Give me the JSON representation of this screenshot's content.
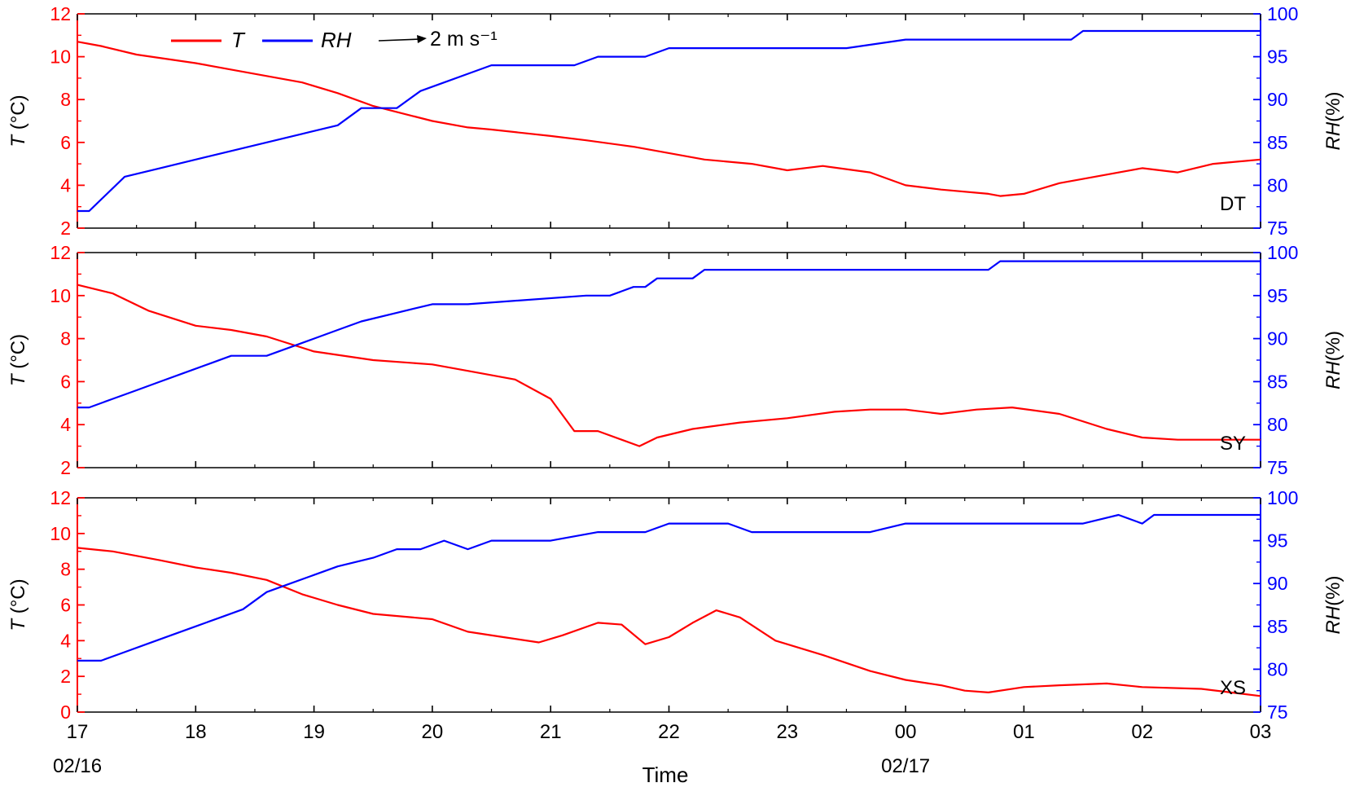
{
  "colors": {
    "temperature": "#ff0000",
    "humidity": "#0000ff",
    "wind": "#000000",
    "axes": "#000000"
  },
  "legend": {
    "t_label": "T",
    "rh_label": "RH",
    "wind_label": "2 m s⁻¹",
    "placement": "top-left"
  },
  "xaxis": {
    "title": "Time",
    "tick_labels": [
      "17",
      "18",
      "19",
      "20",
      "21",
      "22",
      "23",
      "00",
      "01",
      "02",
      "03"
    ],
    "date_labels": [
      {
        "label": "02/16",
        "at": "17"
      },
      {
        "label": "02/17",
        "at": "00"
      }
    ]
  },
  "yaxis_left": {
    "label_var": "T",
    "label_unit": " (°C)"
  },
  "yaxis_right": {
    "label_var": "RH",
    "label_unit": "(%)"
  },
  "chart_data": [
    {
      "type": "line",
      "station": "DT",
      "x_range": [
        "02/16 17:00",
        "02/17 03:00"
      ],
      "ylim_left": [
        2,
        12
      ],
      "yticks_left": [
        2,
        4,
        6,
        8,
        10,
        12
      ],
      "ylim_right": [
        75,
        100
      ],
      "yticks_right": [
        75,
        80,
        85,
        90,
        95,
        100
      ],
      "series": [
        {
          "name": "T",
          "axis": "left",
          "x": [
            17,
            17.2,
            17.5,
            18,
            18.3,
            18.6,
            18.9,
            19.2,
            19.5,
            20,
            20.3,
            20.5,
            21,
            21.3,
            21.7,
            22,
            22.3,
            22.7,
            23,
            23.3,
            23.7,
            24,
            24.3,
            24.7,
            24.8,
            25,
            25.3,
            25.6,
            26,
            26.3,
            26.6,
            27
          ],
          "y": [
            10.7,
            10.5,
            10.1,
            9.7,
            9.4,
            9.1,
            8.8,
            8.3,
            7.7,
            7.0,
            6.7,
            6.6,
            6.3,
            6.1,
            5.8,
            5.5,
            5.2,
            5.0,
            4.7,
            4.9,
            4.6,
            4.0,
            3.8,
            3.6,
            3.5,
            3.6,
            4.1,
            4.4,
            4.8,
            4.6,
            5.0,
            5.2
          ]
        },
        {
          "name": "RH",
          "axis": "right",
          "x": [
            17,
            17.1,
            17.4,
            17.7,
            18,
            18.3,
            18.6,
            18.9,
            19.2,
            19.4,
            19.7,
            19.9,
            20.1,
            20.3,
            20.5,
            21.2,
            21.4,
            21.8,
            22,
            22.7,
            23.5,
            24,
            24.5,
            25,
            25.4,
            25.5,
            27
          ],
          "y": [
            77,
            77,
            81,
            82,
            83,
            84,
            85,
            86,
            87,
            89,
            89,
            91,
            92,
            93,
            94,
            94,
            95,
            95,
            96,
            96,
            96,
            97,
            97,
            97,
            97,
            98,
            98
          ]
        }
      ]
    },
    {
      "type": "line",
      "station": "SY",
      "x_range": [
        "02/16 17:00",
        "02/17 03:00"
      ],
      "ylim_left": [
        2,
        12
      ],
      "yticks_left": [
        2,
        4,
        6,
        8,
        10,
        12
      ],
      "ylim_right": [
        75,
        100
      ],
      "yticks_right": [
        75,
        80,
        85,
        90,
        95,
        100
      ],
      "series": [
        {
          "name": "T",
          "axis": "left",
          "x": [
            17,
            17.3,
            17.6,
            18,
            18.3,
            18.6,
            19,
            19.5,
            20,
            20.3,
            20.7,
            21,
            21.2,
            21.4,
            21.6,
            21.75,
            21.9,
            22.2,
            22.6,
            23,
            23.4,
            23.7,
            24,
            24.3,
            24.6,
            24.9,
            25.3,
            25.7,
            26,
            26.3,
            26.6,
            27
          ],
          "y": [
            10.5,
            10.1,
            9.3,
            8.6,
            8.4,
            8.1,
            7.4,
            7.0,
            6.8,
            6.5,
            6.1,
            5.2,
            3.7,
            3.7,
            3.3,
            3.0,
            3.4,
            3.8,
            4.1,
            4.3,
            4.6,
            4.7,
            4.7,
            4.5,
            4.7,
            4.8,
            4.5,
            3.8,
            3.4,
            3.3,
            3.3,
            3.3
          ]
        },
        {
          "name": "RH",
          "axis": "right",
          "x": [
            17,
            17.1,
            17.3,
            17.5,
            17.7,
            17.9,
            18.1,
            18.3,
            18.6,
            18.8,
            19,
            19.2,
            19.4,
            19.7,
            20,
            20.3,
            21.3,
            21.5,
            21.7,
            21.8,
            21.9,
            22.2,
            22.3,
            24,
            24.7,
            24.8,
            27
          ],
          "y": [
            82,
            82,
            83,
            84,
            85,
            86,
            87,
            88,
            88,
            89,
            90,
            91,
            92,
            93,
            94,
            94,
            95,
            95,
            96,
            96,
            97,
            97,
            98,
            98,
            98,
            99,
            99
          ]
        }
      ]
    },
    {
      "type": "line",
      "station": "XS",
      "x_range": [
        "02/16 17:00",
        "02/17 03:00"
      ],
      "ylim_left": [
        0,
        12
      ],
      "yticks_left": [
        0,
        2,
        4,
        6,
        8,
        10,
        12
      ],
      "ylim_right": [
        75,
        100
      ],
      "yticks_right": [
        75,
        80,
        85,
        90,
        95,
        100
      ],
      "series": [
        {
          "name": "T",
          "axis": "left",
          "x": [
            17,
            17.3,
            17.7,
            18,
            18.3,
            18.6,
            18.9,
            19.2,
            19.5,
            20,
            20.3,
            20.6,
            20.9,
            21.1,
            21.4,
            21.6,
            21.8,
            22,
            22.2,
            22.4,
            22.6,
            22.9,
            23.3,
            23.7,
            24,
            24.3,
            24.5,
            24.7,
            25,
            25.3,
            25.7,
            26,
            26.5,
            27
          ],
          "y": [
            9.2,
            9.0,
            8.5,
            8.1,
            7.8,
            7.4,
            6.6,
            6.0,
            5.5,
            5.2,
            4.5,
            4.2,
            3.9,
            4.3,
            5.0,
            4.9,
            3.8,
            4.2,
            5.0,
            5.7,
            5.3,
            4.0,
            3.2,
            2.3,
            1.8,
            1.5,
            1.2,
            1.1,
            1.4,
            1.5,
            1.6,
            1.4,
            1.3,
            0.9
          ]
        },
        {
          "name": "RH",
          "axis": "right",
          "x": [
            17,
            17.2,
            17.4,
            17.6,
            17.8,
            18,
            18.2,
            18.4,
            18.6,
            18.8,
            19,
            19.2,
            19.5,
            19.7,
            19.9,
            20.1,
            20.3,
            20.5,
            21,
            21.4,
            21.6,
            21.8,
            22,
            22.2,
            22.5,
            22.7,
            23,
            23.7,
            24,
            25,
            25.5,
            25.8,
            26,
            26.1,
            27
          ],
          "y": [
            81,
            81,
            82,
            83,
            84,
            85,
            86,
            87,
            89,
            90,
            91,
            92,
            93,
            94,
            94,
            95,
            94,
            95,
            95,
            96,
            96,
            96,
            97,
            97,
            97,
            96,
            96,
            96,
            97,
            97,
            97,
            98,
            97,
            98,
            98
          ]
        }
      ]
    }
  ]
}
